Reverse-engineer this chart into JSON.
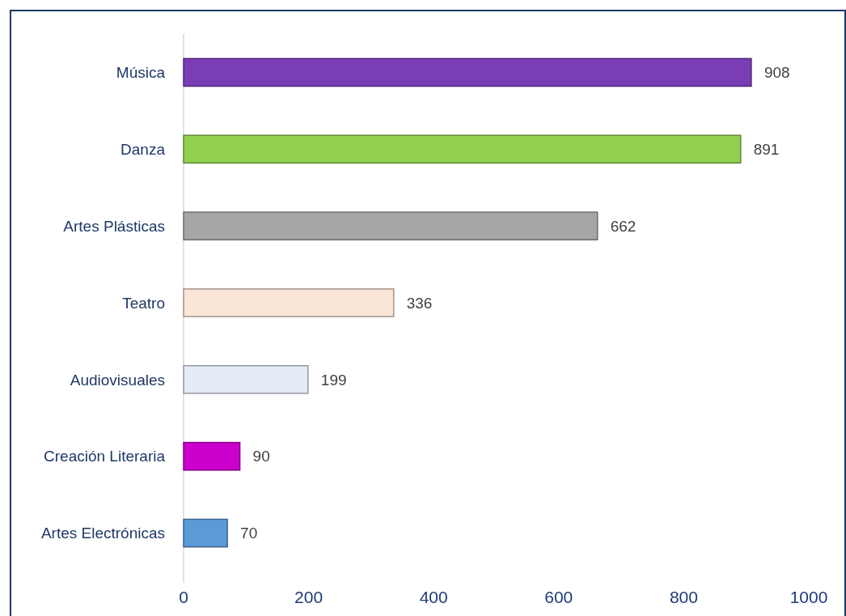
{
  "chart_data": {
    "type": "bar",
    "orientation": "horizontal",
    "categories": [
      "Música",
      "Danza",
      "Artes Plásticas",
      "Teatro",
      "Audiovisuales",
      "Creación Literaria",
      "Artes Electrónicas"
    ],
    "values": [
      908,
      891,
      662,
      336,
      199,
      90,
      70
    ],
    "colors": [
      "#7a3db5",
      "#92d050",
      "#a6a6a6",
      "#fbe5d6",
      "#e4eaf6",
      "#cc00cc",
      "#5b9bd5"
    ],
    "xlim": [
      0,
      1000
    ],
    "xticks": [
      0,
      200,
      400,
      600,
      800,
      1000
    ],
    "grid": false,
    "data_labels": true
  }
}
